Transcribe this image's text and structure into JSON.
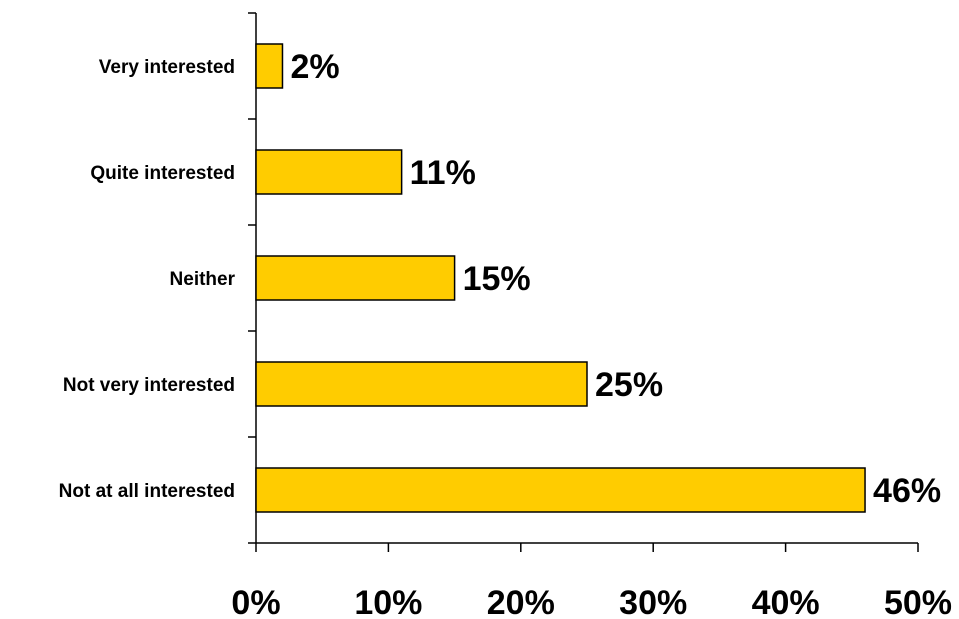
{
  "chart_data": {
    "type": "bar",
    "orientation": "horizontal",
    "categories": [
      "Very interested",
      "Quite interested",
      "Neither",
      "Not very interested",
      "Not at all interested"
    ],
    "values": [
      2,
      11,
      15,
      25,
      46
    ],
    "value_labels": [
      "2%",
      "11%",
      "15%",
      "25%",
      "46%"
    ],
    "xlim": [
      0,
      50
    ],
    "x_ticks": [
      0,
      10,
      20,
      30,
      40,
      50
    ],
    "x_tick_labels": [
      "0%",
      "10%",
      "20%",
      "30%",
      "40%",
      "50%"
    ],
    "grid": false,
    "legend": "none",
    "bar_color": "#FFCC00",
    "bar_stroke": "#000000"
  }
}
